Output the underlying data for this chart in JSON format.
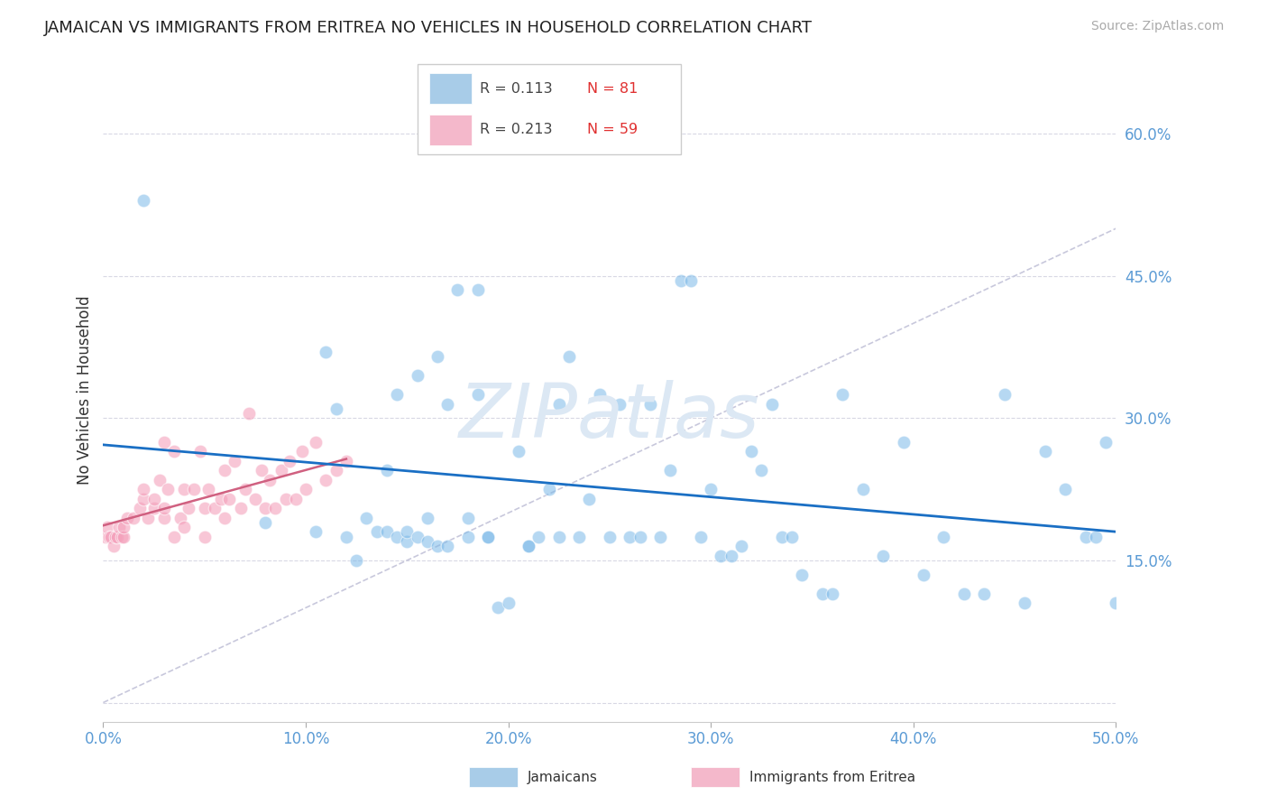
{
  "title": "JAMAICAN VS IMMIGRANTS FROM ERITREA NO VEHICLES IN HOUSEHOLD CORRELATION CHART",
  "source": "Source: ZipAtlas.com",
  "ylabel": "No Vehicles in Household",
  "xlim": [
    0.0,
    0.5
  ],
  "ylim": [
    -0.02,
    0.68
  ],
  "xtick_vals": [
    0.0,
    0.1,
    0.2,
    0.3,
    0.4,
    0.5
  ],
  "xticklabels": [
    "0.0%",
    "10.0%",
    "20.0%",
    "30.0%",
    "40.0%",
    "50.0%"
  ],
  "ytick_vals": [
    0.0,
    0.15,
    0.3,
    0.45,
    0.6
  ],
  "yticklabels": [
    "",
    "15.0%",
    "30.0%",
    "45.0%",
    "60.0%"
  ],
  "R_jamaican": 0.113,
  "N_jamaican": 81,
  "R_eritrea": 0.213,
  "N_eritrea": 59,
  "color_jamaican": "#7ab8e8",
  "color_eritrea": "#f4a0bb",
  "trend_color_jamaican": "#1a6fc4",
  "trend_color_eritrea": "#d06080",
  "diagonal_color": "#c8c8dc",
  "background_color": "#ffffff",
  "legend_jamaican_color": "#a8cce8",
  "legend_eritrea_color": "#f4b8cb",
  "tick_color": "#5b9bd5",
  "grid_color": "#d8d8e4",
  "watermark_color": "#dce8f4",
  "jamaican_x": [
    0.02,
    0.08,
    0.105,
    0.11,
    0.115,
    0.12,
    0.125,
    0.13,
    0.135,
    0.14,
    0.14,
    0.145,
    0.145,
    0.15,
    0.15,
    0.155,
    0.155,
    0.16,
    0.16,
    0.165,
    0.165,
    0.17,
    0.17,
    0.175,
    0.18,
    0.18,
    0.185,
    0.185,
    0.19,
    0.19,
    0.195,
    0.2,
    0.205,
    0.21,
    0.21,
    0.215,
    0.22,
    0.225,
    0.225,
    0.23,
    0.235,
    0.24,
    0.245,
    0.25,
    0.255,
    0.26,
    0.265,
    0.27,
    0.275,
    0.28,
    0.285,
    0.29,
    0.295,
    0.3,
    0.305,
    0.31,
    0.315,
    0.32,
    0.325,
    0.33,
    0.335,
    0.34,
    0.345,
    0.355,
    0.36,
    0.365,
    0.375,
    0.385,
    0.395,
    0.405,
    0.415,
    0.425,
    0.435,
    0.445,
    0.455,
    0.465,
    0.475,
    0.485,
    0.49,
    0.495,
    0.5
  ],
  "jamaican_y": [
    0.53,
    0.19,
    0.18,
    0.37,
    0.31,
    0.175,
    0.15,
    0.195,
    0.18,
    0.18,
    0.245,
    0.325,
    0.175,
    0.17,
    0.18,
    0.345,
    0.175,
    0.17,
    0.195,
    0.365,
    0.165,
    0.165,
    0.315,
    0.435,
    0.175,
    0.195,
    0.325,
    0.435,
    0.175,
    0.175,
    0.1,
    0.105,
    0.265,
    0.165,
    0.165,
    0.175,
    0.225,
    0.315,
    0.175,
    0.365,
    0.175,
    0.215,
    0.325,
    0.175,
    0.315,
    0.175,
    0.175,
    0.315,
    0.175,
    0.245,
    0.445,
    0.445,
    0.175,
    0.225,
    0.155,
    0.155,
    0.165,
    0.265,
    0.245,
    0.315,
    0.175,
    0.175,
    0.135,
    0.115,
    0.115,
    0.325,
    0.225,
    0.155,
    0.275,
    0.135,
    0.175,
    0.115,
    0.115,
    0.325,
    0.105,
    0.265,
    0.225,
    0.175,
    0.175,
    0.275,
    0.105
  ],
  "eritrea_x": [
    0.001,
    0.002,
    0.003,
    0.004,
    0.005,
    0.006,
    0.007,
    0.008,
    0.009,
    0.01,
    0.01,
    0.012,
    0.015,
    0.018,
    0.02,
    0.02,
    0.022,
    0.025,
    0.025,
    0.028,
    0.03,
    0.03,
    0.03,
    0.032,
    0.035,
    0.035,
    0.038,
    0.04,
    0.04,
    0.042,
    0.045,
    0.048,
    0.05,
    0.05,
    0.052,
    0.055,
    0.058,
    0.06,
    0.06,
    0.062,
    0.065,
    0.068,
    0.07,
    0.072,
    0.075,
    0.078,
    0.08,
    0.082,
    0.085,
    0.088,
    0.09,
    0.092,
    0.095,
    0.098,
    0.1,
    0.105,
    0.11,
    0.115,
    0.12
  ],
  "eritrea_y": [
    0.175,
    0.185,
    0.175,
    0.175,
    0.165,
    0.175,
    0.175,
    0.185,
    0.175,
    0.175,
    0.185,
    0.195,
    0.195,
    0.205,
    0.215,
    0.225,
    0.195,
    0.205,
    0.215,
    0.235,
    0.275,
    0.195,
    0.205,
    0.225,
    0.265,
    0.175,
    0.195,
    0.225,
    0.185,
    0.205,
    0.225,
    0.265,
    0.175,
    0.205,
    0.225,
    0.205,
    0.215,
    0.245,
    0.195,
    0.215,
    0.255,
    0.205,
    0.225,
    0.305,
    0.215,
    0.245,
    0.205,
    0.235,
    0.205,
    0.245,
    0.215,
    0.255,
    0.215,
    0.265,
    0.225,
    0.275,
    0.235,
    0.245,
    0.255
  ]
}
